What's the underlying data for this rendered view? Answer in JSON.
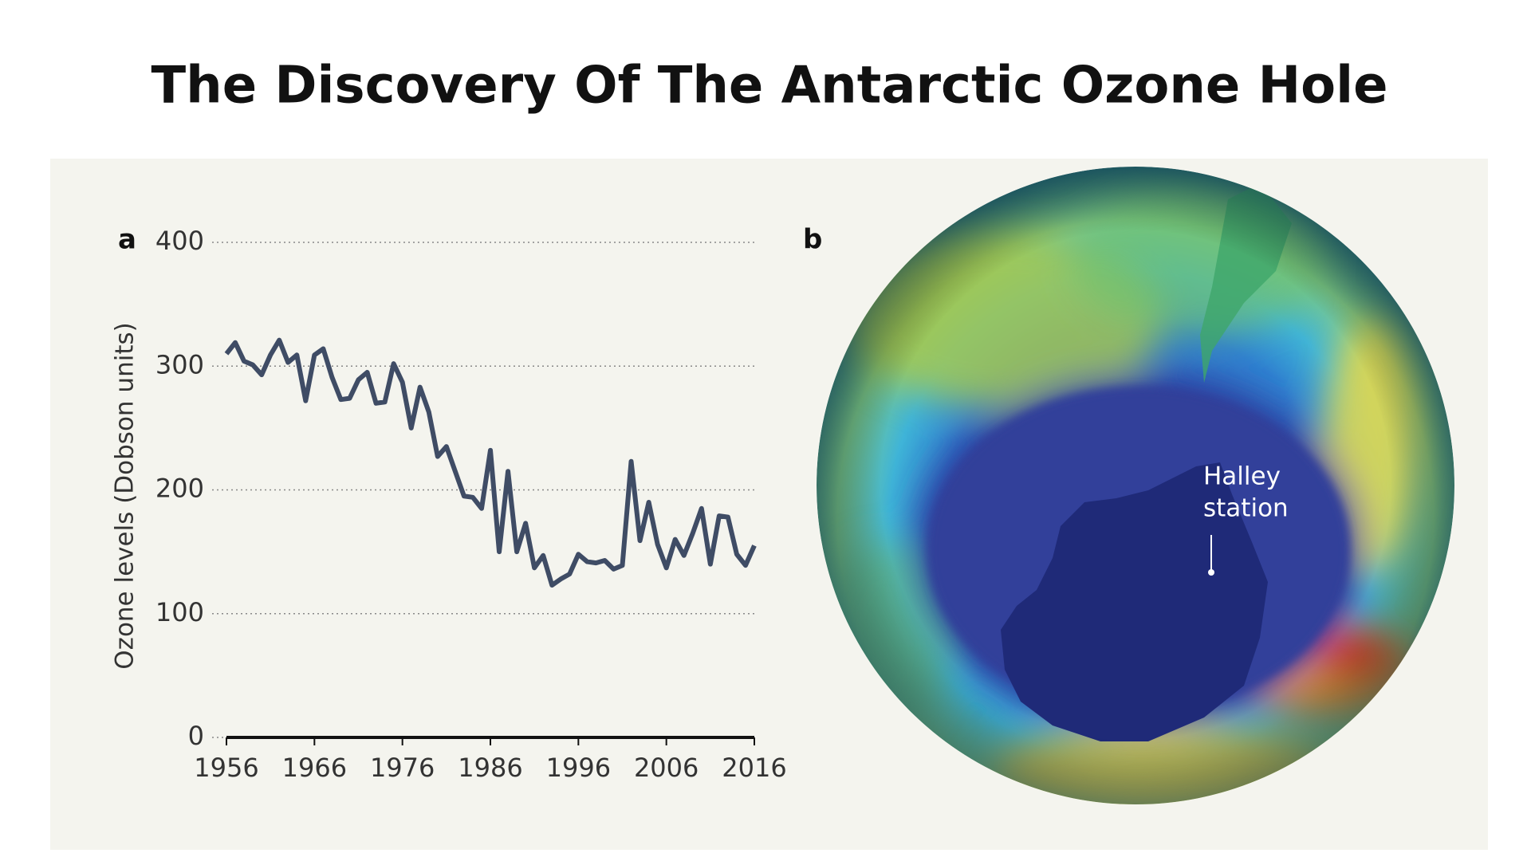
{
  "chart_data": {
    "type": "line",
    "title": "The Discovery Of The Antarctic Ozone Hole",
    "panel_label": "a",
    "ylabel": "Ozone levels (Dobson units)",
    "x": [
      1956,
      1957,
      1958,
      1959,
      1960,
      1961,
      1962,
      1963,
      1964,
      1965,
      1966,
      1967,
      1968,
      1969,
      1970,
      1971,
      1972,
      1973,
      1974,
      1975,
      1976,
      1977,
      1978,
      1979,
      1980,
      1981,
      1982,
      1983,
      1984,
      1985,
      1986,
      1987,
      1988,
      1989,
      1990,
      1991,
      1992,
      1993,
      1994,
      1995,
      1996,
      1997,
      1998,
      1999,
      2000,
      2001,
      2002,
      2003,
      2004,
      2005,
      2006,
      2007,
      2008,
      2009,
      2010,
      2011,
      2012,
      2013,
      2014,
      2015,
      2016
    ],
    "values": [
      310,
      319,
      304,
      301,
      293,
      309,
      321,
      303,
      309,
      272,
      309,
      314,
      291,
      273,
      274,
      289,
      295,
      270,
      271,
      302,
      287,
      250,
      283,
      263,
      227,
      235,
      215,
      195,
      194,
      185,
      232,
      150,
      215,
      150,
      173,
      137,
      147,
      123,
      128,
      132,
      148,
      142,
      141,
      143,
      136,
      139,
      223,
      159,
      190,
      156,
      137,
      160,
      147,
      165,
      185,
      140,
      179,
      178,
      148,
      139,
      155
    ],
    "color": "#3f4c65",
    "xlim": [
      1956,
      2016
    ],
    "xticks": [
      1956,
      1966,
      1976,
      1986,
      1996,
      2006,
      2016
    ],
    "ylim": [
      0,
      400
    ],
    "yticks": [
      0,
      100,
      200,
      300,
      400
    ],
    "grid": true
  },
  "globe": {
    "panel_label": "b",
    "annotation_lines": [
      "Halley",
      "station"
    ]
  }
}
